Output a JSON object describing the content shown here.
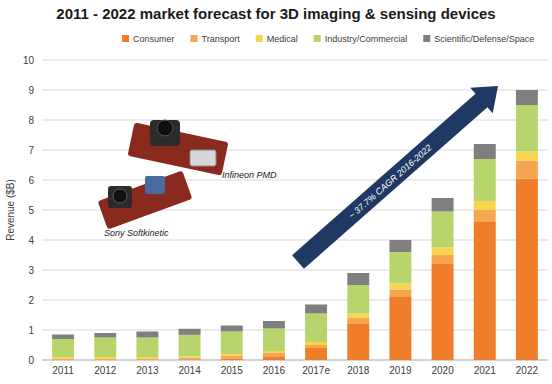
{
  "chart_data": {
    "type": "bar",
    "stacked": true,
    "title": "2011 - 2022 market forecast for 3D imaging & sensing devices",
    "y_label": "Revenue ($B)",
    "annotations": [
      "~ 37.7% CAGR 2016-2022",
      "Infineon PMD",
      "Sony Softkinetic"
    ],
    "categories": [
      "2011",
      "2012",
      "2013",
      "2014",
      "2015",
      "2016",
      "2017e",
      "2018",
      "2019",
      "2020",
      "2021",
      "2022"
    ],
    "series": [
      {
        "name": "Consumer",
        "color": "#f07d2a",
        "values": [
          0,
          0,
          0,
          0.02,
          0.05,
          0.1,
          0.4,
          1.2,
          2.1,
          3.2,
          4.6,
          6.05
        ]
      },
      {
        "name": "Transport",
        "color": "#f6a650",
        "values": [
          0.05,
          0.05,
          0.05,
          0.05,
          0.1,
          0.15,
          0.1,
          0.2,
          0.25,
          0.3,
          0.4,
          0.6
        ]
      },
      {
        "name": "Medical",
        "color": "#f7d54e",
        "values": [
          0.05,
          0.05,
          0.05,
          0.05,
          0.05,
          0.05,
          0.1,
          0.15,
          0.2,
          0.25,
          0.3,
          0.3
        ]
      },
      {
        "name": "Industry/Commercial",
        "color": "#b7d56c",
        "values": [
          0.6,
          0.65,
          0.65,
          0.72,
          0.75,
          0.75,
          0.95,
          0.95,
          1.05,
          1.2,
          1.4,
          1.55
        ]
      },
      {
        "name": "Scientific/Defense/Space",
        "color": "#7f7f7f",
        "values": [
          0.15,
          0.15,
          0.2,
          0.2,
          0.2,
          0.25,
          0.3,
          0.4,
          0.4,
          0.45,
          0.5,
          0.5
        ]
      }
    ],
    "ylim": [
      0,
      10
    ],
    "yticks": [
      0,
      1,
      2,
      3,
      4,
      5,
      6,
      7,
      8,
      9,
      10
    ],
    "grid": true,
    "legend": "top"
  }
}
